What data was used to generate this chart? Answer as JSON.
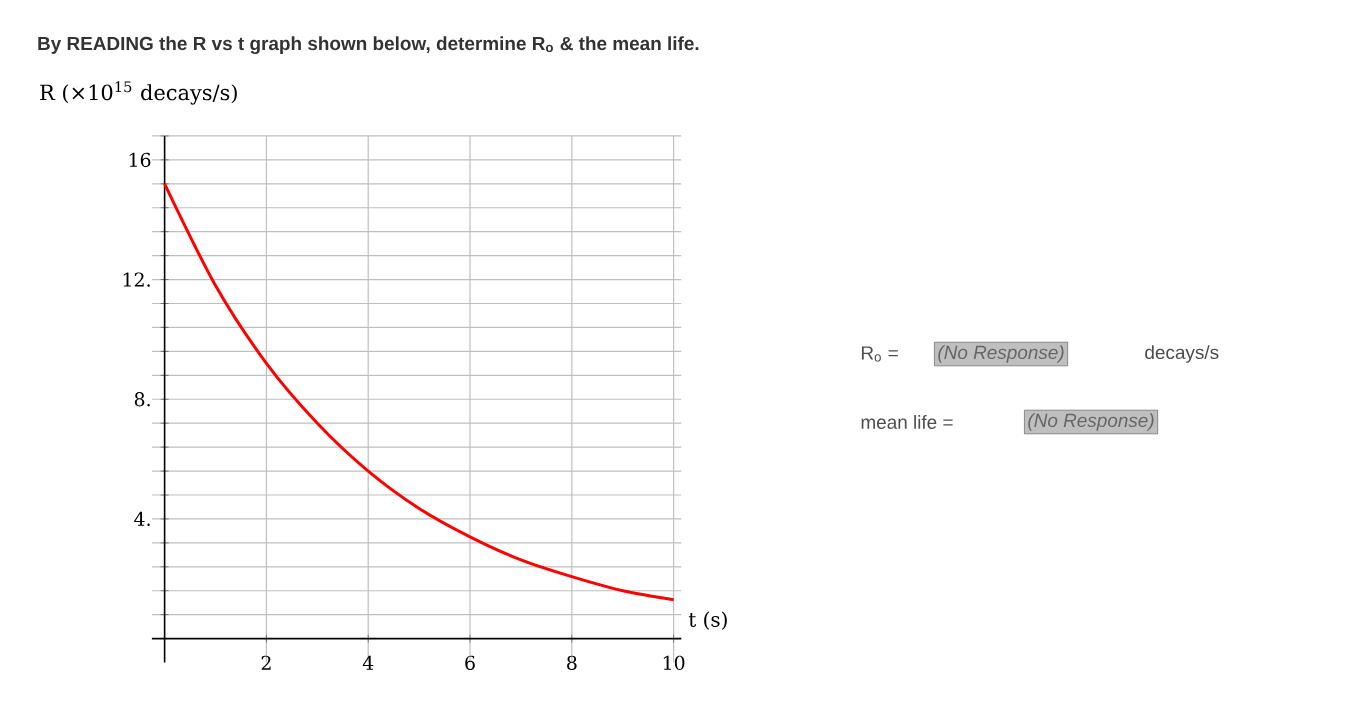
{
  "chart_data": {
    "type": "line",
    "title": "By READING the R vs t graph shown below, determine R$_{o}$ & the mean life.",
    "ylabel": "R (×10$^{15}$ decays/s)",
    "xlabel": "t (s)",
    "x": [
      0,
      1,
      2,
      3,
      4,
      5,
      6,
      7,
      8,
      9,
      10
    ],
    "series": [
      {
        "color": "#ff0000",
        "values": [
          15.2,
          11.8,
          9.2,
          7.2,
          5.6,
          4.35,
          3.4,
          2.63,
          2.07,
          1.6,
          1.3
        ]
      }
    ],
    "xlim": [
      -0.25,
      10.15
    ],
    "ylim": [
      -0.8,
      16.8
    ],
    "xticks": [
      2,
      4,
      6,
      8,
      10
    ],
    "yticks": [
      {
        "value": 0.8,
        "label": null
      },
      {
        "value": 1.6,
        "label": null
      },
      {
        "value": 2.4,
        "label": null
      },
      {
        "value": 3.2,
        "label": null
      },
      {
        "value": 4,
        "label": "4."
      },
      {
        "value": 4.8,
        "label": null
      },
      {
        "value": 5.6,
        "label": null
      },
      {
        "value": 6.4,
        "label": null
      },
      {
        "value": 7.2,
        "label": null
      },
      {
        "value": 8,
        "label": "8."
      },
      {
        "value": 8.8,
        "label": null
      },
      {
        "value": 9.6,
        "label": null
      },
      {
        "value": 10.4,
        "label": null
      },
      {
        "value": 11.2,
        "label": null
      },
      {
        "value": 12,
        "label": "12."
      },
      {
        "value": 12.8,
        "label": null
      },
      {
        "value": 13.6,
        "label": null
      },
      {
        "value": 14.4,
        "label": null
      },
      {
        "value": 15.2,
        "label": null
      },
      {
        "value": 16,
        "label": "16"
      },
      {
        "value": 16.8,
        "label": null
      }
    ],
    "grid": true,
    "marker": "none",
    "annotations": [
      "R$_{o}$ =",
      "(No Response)",
      "decays/s",
      "mean life =",
      "(No Response)"
    ]
  }
}
